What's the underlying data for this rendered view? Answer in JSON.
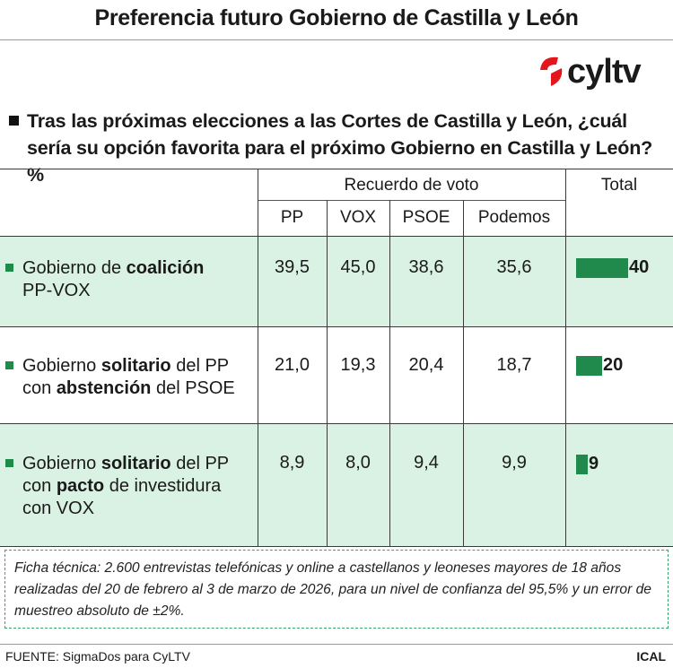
{
  "title": "Preferencia futuro Gobierno de Castilla y León",
  "logo_text": "cyltv",
  "question": "Tras las próximas elecciones a las Cortes de Castilla y León, ¿cuál sería su opción favorita para el próximo Gobierno en Castilla y León? %",
  "header": {
    "group": "Recuerdo de voto",
    "total": "Total",
    "columns": [
      "PP",
      "VOX",
      "PSOE",
      "Podemos"
    ]
  },
  "rows": [
    {
      "label_parts": [
        "Gobierno de ",
        "coalición",
        "",
        "PP-VOX",
        "",
        ""
      ],
      "values": [
        "39,5",
        "45,0",
        "38,6",
        "35,6"
      ],
      "total": "40"
    },
    {
      "label_parts": [
        "Gobierno ",
        "solitario",
        " del PP",
        "con ",
        "abstención",
        " del PSOE"
      ],
      "values": [
        "21,0",
        "19,3",
        "20,4",
        "18,7"
      ],
      "total": "20"
    },
    {
      "label_parts": [
        "Gobierno ",
        "solitario",
        " del PP",
        "con ",
        "pacto",
        " de investidura",
        "con VOX"
      ],
      "values": [
        "8,9",
        "8,0",
        "9,4",
        "9,9"
      ],
      "total": "9"
    }
  ],
  "chart_data": {
    "type": "bar",
    "categories": [
      "Gobierno de coalición PP-VOX",
      "Gobierno solitario del PP con abstención del PSOE",
      "Gobierno solitario del PP con pacto de investidura con VOX"
    ],
    "values": [
      40,
      20,
      9
    ],
    "title": "Preferencia futuro Gobierno de Castilla y León",
    "xlabel": "",
    "ylabel": "",
    "color": "#1f8a4c"
  },
  "note": "Ficha técnica: 2.600 entrevistas telefónicas y online a castellanos y leoneses mayores de 18 años realizadas del 20 de febrero al 3 de marzo de 2026, para un nivel de confianza del 95,5% y un error de muestreo absoluto de ±2%.",
  "source": "FUENTE: SigmaDos para CyLTV",
  "agency": "ICAL",
  "colors": {
    "accent_green": "#1f8a4c",
    "row_bg": "#d9f2e3",
    "logo_red": "#e3161b"
  }
}
